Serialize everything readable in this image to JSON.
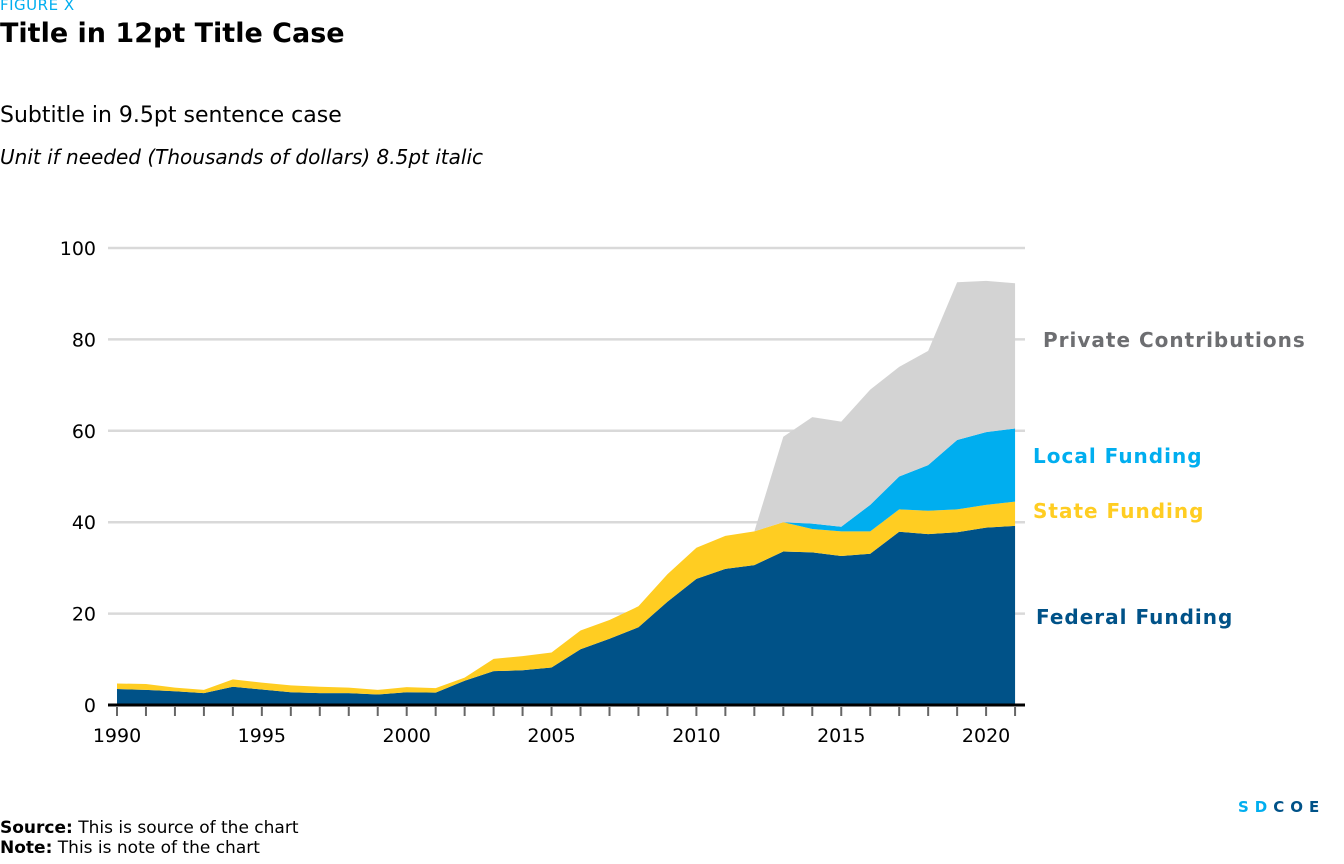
{
  "figure_label": "FIGURE X",
  "title": "Title in 12pt Title Case",
  "subtitle": "Subtitle in 9.5pt sentence case",
  "unit": "Unit if needed (Thousands of dollars) 8.5pt italic",
  "source_label": "Source:",
  "source_text": " This is source of the chart",
  "note_label": "Note:",
  "note_text": " This is note of the chart",
  "logo": {
    "sd": "SD",
    "coe": "COE",
    "sd_color": "#00aeef",
    "coe_color": "#005288"
  },
  "chart_data": {
    "type": "area",
    "stacked": true,
    "x": [
      1990,
      1991,
      1992,
      1993,
      1994,
      1995,
      1996,
      1997,
      1998,
      1999,
      2000,
      2001,
      2002,
      2003,
      2004,
      2005,
      2006,
      2007,
      2008,
      2009,
      2010,
      2011,
      2012,
      2013,
      2014,
      2015,
      2016,
      2017,
      2018,
      2019,
      2020,
      2021
    ],
    "series": [
      {
        "name": "Federal Funding",
        "color": "#005288",
        "label_color": "#005288",
        "values": [
          3.5,
          3.3,
          3.0,
          2.6,
          4.0,
          3.4,
          2.8,
          2.6,
          2.6,
          2.3,
          2.8,
          2.7,
          5.3,
          7.4,
          7.6,
          8.2,
          12.2,
          14.5,
          17.0,
          22.6,
          27.6,
          29.8,
          30.6,
          33.6,
          33.4,
          32.6,
          33.1,
          37.9,
          37.4,
          37.8,
          38.8,
          39.2
        ]
      },
      {
        "name": "State Funding",
        "color": "#ffcd22",
        "label_color": "#ffcd22",
        "values": [
          1.2,
          1.3,
          0.8,
          0.7,
          1.6,
          1.5,
          1.5,
          1.4,
          1.2,
          1.0,
          1.1,
          1.0,
          0.7,
          2.7,
          3.1,
          3.3,
          4.1,
          4.1,
          4.6,
          6.0,
          6.8,
          7.2,
          7.4,
          6.4,
          5.1,
          5.4,
          4.9,
          4.9,
          5.1,
          5.0,
          5.0,
          5.3
        ]
      },
      {
        "name": "Local Funding",
        "color": "#00aeef",
        "label_color": "#00aeef",
        "values": [
          0,
          0,
          0,
          0,
          0,
          0,
          0,
          0,
          0,
          0,
          0,
          0,
          0,
          0,
          0,
          0,
          0,
          0,
          0,
          0,
          0,
          0,
          0,
          0,
          1.2,
          1.0,
          5.8,
          7.2,
          10.0,
          15.2,
          15.9,
          16.0
        ]
      },
      {
        "name": "Private Contributions",
        "color": "#d3d3d3",
        "label_color": "#6d6e71",
        "values": [
          0,
          0,
          0,
          0,
          0,
          0,
          0,
          0,
          0,
          0,
          0,
          0,
          0,
          0,
          0,
          0,
          0,
          0,
          0,
          0,
          0,
          0,
          0,
          18.7,
          23.3,
          23.0,
          25.2,
          24.0,
          25.0,
          34.5,
          33.1,
          31.8
        ]
      }
    ],
    "ylim": [
      0,
      100
    ],
    "yticks": [
      "0",
      "20",
      "40",
      "60",
      "80",
      "100"
    ],
    "xticks": [
      "1990",
      "1995",
      "2000",
      "2005",
      "2010",
      "2015",
      "2020"
    ],
    "grid": true,
    "legend": "direct labels right"
  }
}
